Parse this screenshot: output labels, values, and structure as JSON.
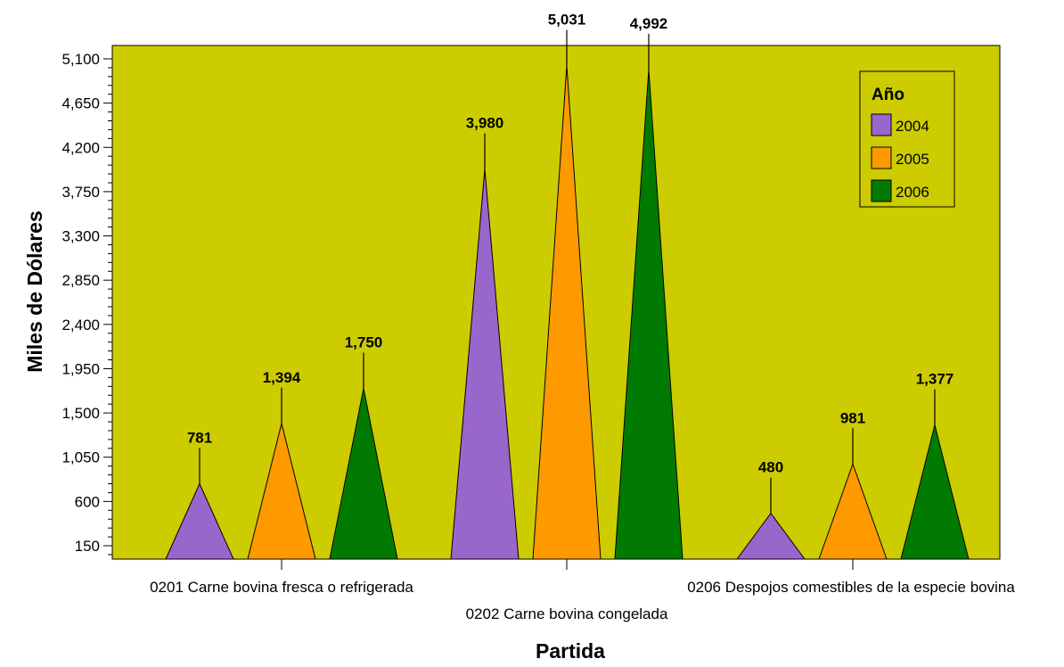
{
  "chart_data": {
    "type": "bar",
    "title": "",
    "xlabel": "Partida",
    "ylabel": "Miles de Dólares",
    "categories": [
      "0201 Carne bovina fresca o refrigerada",
      "0202 Carne bovina congelada",
      "0206 Despojos comestibles de la especie bovina"
    ],
    "series": [
      {
        "name": "2004",
        "color": "#9966CC",
        "values": [
          781,
          3980,
          480
        ]
      },
      {
        "name": "2005",
        "color": "#FF9900",
        "values": [
          1394,
          5031,
          981
        ]
      },
      {
        "name": "2006",
        "color": "#007A00",
        "values": [
          1750,
          4992,
          1377
        ]
      }
    ],
    "data_labels": [
      [
        "781",
        "3,980",
        "480"
      ],
      [
        "1,394",
        "5,031",
        "981"
      ],
      [
        "1,750",
        "4,992",
        "1,377"
      ]
    ],
    "yticks": [
      150,
      600,
      1050,
      1500,
      1950,
      2400,
      2850,
      3300,
      3750,
      4200,
      4650,
      5100
    ],
    "ytick_labels": [
      "150",
      "600",
      "1,050",
      "1,500",
      "1,950",
      "2,400",
      "2,850",
      "3,300",
      "3,750",
      "4,200",
      "4,650",
      "5,100"
    ],
    "ylim": [
      0,
      5150
    ],
    "legend": {
      "title": "Año",
      "position": "top-right"
    },
    "grid": false,
    "plot_background": "#CCCC00",
    "mark_shape": "triangle"
  }
}
